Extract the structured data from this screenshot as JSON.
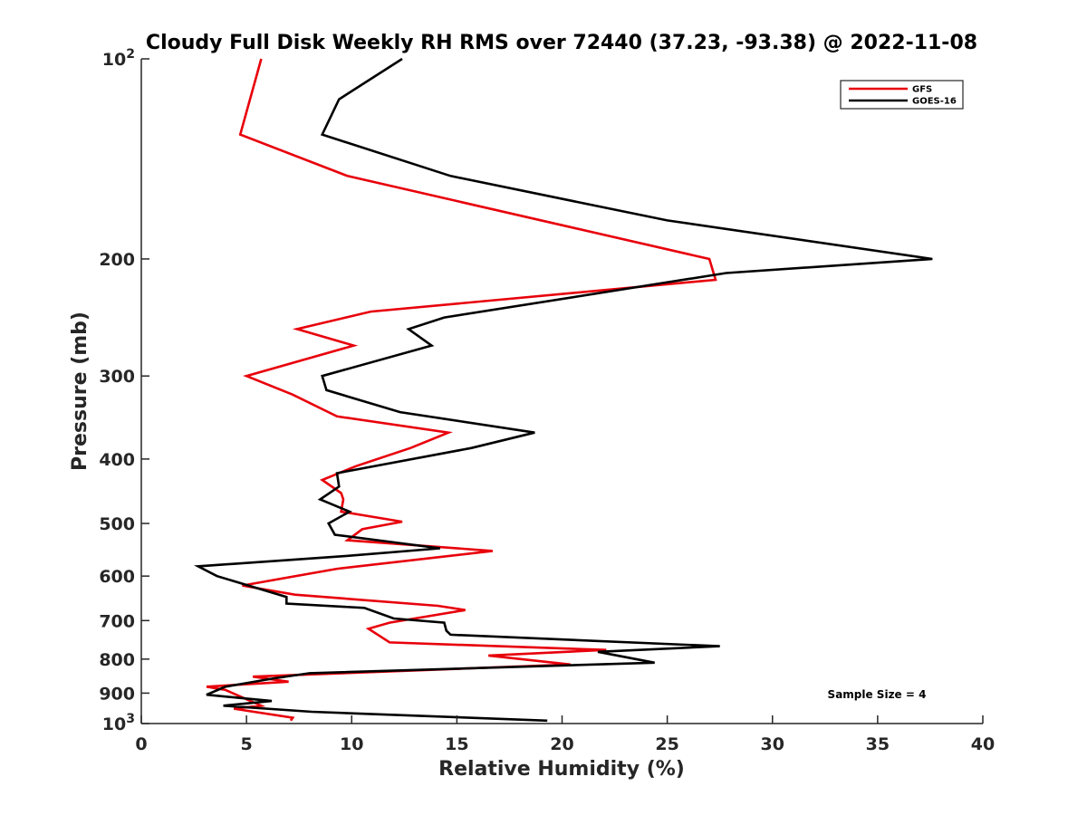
{
  "chart_data": {
    "type": "line",
    "title": "Cloudy Full Disk Weekly RH RMS over 72440 (37.23, -93.38) @ 2022-11-08",
    "xlabel": "Relative Humidity (%)",
    "ylabel": "Pressure (mb)",
    "xlim": [
      0,
      40
    ],
    "ylim": [
      100,
      1000
    ],
    "y_scale": "log",
    "y_reversed": true,
    "grid": false,
    "legend_position": "top-right",
    "x_ticks": [
      "0",
      "5",
      "10",
      "15",
      "20",
      "25",
      "30",
      "35",
      "40"
    ],
    "x_tick_values": [
      0,
      5,
      10,
      15,
      20,
      25,
      30,
      35,
      40
    ],
    "y_ticks": [
      {
        "value": 100,
        "base": "10",
        "exp": "2"
      },
      {
        "value": 200,
        "label": "200"
      },
      {
        "value": 300,
        "label": "300"
      },
      {
        "value": 400,
        "label": "400"
      },
      {
        "value": 500,
        "label": "500"
      },
      {
        "value": 600,
        "label": "600"
      },
      {
        "value": 700,
        "label": "700"
      },
      {
        "value": 800,
        "label": "800"
      },
      {
        "value": 900,
        "label": "900"
      },
      {
        "value": 1000,
        "base": "10",
        "exp": "3"
      }
    ],
    "annotation": "Sample Size = 4",
    "series": [
      {
        "name": "GFS",
        "color": "#e8000b",
        "points": [
          [
            5.7,
            100
          ],
          [
            4.7,
            130
          ],
          [
            9.8,
            150
          ],
          [
            27.0,
            200
          ],
          [
            27.3,
            215
          ],
          [
            10.9,
            240
          ],
          [
            7.4,
            255
          ],
          [
            10.1,
            270
          ],
          [
            5.0,
            300
          ],
          [
            7.2,
            320
          ],
          [
            9.3,
            345
          ],
          [
            14.6,
            365
          ],
          [
            12.8,
            385
          ],
          [
            10.2,
            410
          ],
          [
            8.6,
            430
          ],
          [
            9.5,
            450
          ],
          [
            9.6,
            460
          ],
          [
            9.5,
            480
          ],
          [
            12.4,
            497
          ],
          [
            10.5,
            510
          ],
          [
            9.8,
            530
          ],
          [
            16.7,
            550
          ],
          [
            9.3,
            585
          ],
          [
            4.8,
            620
          ],
          [
            7.3,
            640
          ],
          [
            14.1,
            665
          ],
          [
            15.4,
            675
          ],
          [
            11.8,
            705
          ],
          [
            10.8,
            720
          ],
          [
            11.8,
            755
          ],
          [
            22.1,
            775
          ],
          [
            16.5,
            790
          ],
          [
            20.4,
            815
          ],
          [
            5.3,
            850
          ],
          [
            7.0,
            865
          ],
          [
            3.1,
            880
          ],
          [
            4.0,
            890
          ],
          [
            5.7,
            940
          ],
          [
            4.4,
            950
          ],
          [
            7.2,
            980
          ],
          [
            7.1,
            990
          ]
        ]
      },
      {
        "name": "GOES-16",
        "color": "#000000",
        "points": [
          [
            12.4,
            100
          ],
          [
            9.4,
            115
          ],
          [
            8.6,
            130
          ],
          [
            14.7,
            150
          ],
          [
            25.0,
            175
          ],
          [
            37.6,
            200
          ],
          [
            27.8,
            210
          ],
          [
            14.4,
            245
          ],
          [
            12.7,
            255
          ],
          [
            13.8,
            270
          ],
          [
            8.6,
            300
          ],
          [
            8.8,
            315
          ],
          [
            12.3,
            340
          ],
          [
            18.7,
            365
          ],
          [
            15.7,
            385
          ],
          [
            9.3,
            420
          ],
          [
            9.4,
            440
          ],
          [
            8.5,
            460
          ],
          [
            9.9,
            480
          ],
          [
            8.9,
            500
          ],
          [
            9.2,
            520
          ],
          [
            14.2,
            545
          ],
          [
            9.6,
            560
          ],
          [
            2.7,
            580
          ],
          [
            3.6,
            600
          ],
          [
            6.9,
            645
          ],
          [
            6.9,
            660
          ],
          [
            10.6,
            670
          ],
          [
            12.0,
            695
          ],
          [
            14.4,
            705
          ],
          [
            14.5,
            725
          ],
          [
            14.7,
            735
          ],
          [
            27.5,
            765
          ],
          [
            21.7,
            780
          ],
          [
            24.4,
            810
          ],
          [
            8.0,
            840
          ],
          [
            6.3,
            855
          ],
          [
            4.0,
            880
          ],
          [
            3.1,
            905
          ],
          [
            6.2,
            925
          ],
          [
            3.9,
            940
          ],
          [
            8.1,
            960
          ],
          [
            19.3,
            990
          ]
        ]
      }
    ]
  }
}
